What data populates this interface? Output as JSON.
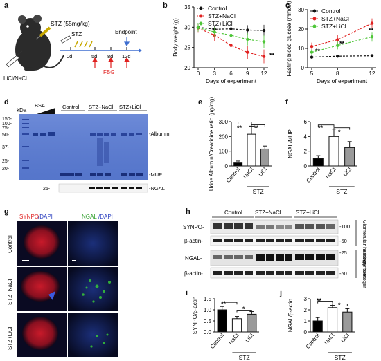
{
  "panels": {
    "a": {
      "letter": "a",
      "dose_label": "STZ (55mg/kg)",
      "injection_label": "LiCl/NaCl",
      "stz_label": "STZ",
      "endpoint_label": "Endpoint",
      "timeline_days": [
        "0d",
        "5d",
        "8d",
        "12d"
      ],
      "fbg_label": "FBG"
    },
    "b": {
      "letter": "b",
      "significance": "**"
    },
    "c": {
      "letter": "c",
      "significance": [
        "**",
        "**",
        "**"
      ]
    },
    "d": {
      "letter": "d",
      "kda_label": "kDa",
      "bsa_label": "BSA",
      "group_labels": [
        "Control",
        "STZ+NaCl",
        "STZ+LiCl"
      ],
      "mw_markers": [
        "150-",
        "100-",
        "75-",
        "50-",
        "37-",
        "25-",
        "20-"
      ],
      "band_labels": {
        "albumin": "-Albumin",
        "mup": "-MUP",
        "ngal": "-NGAL"
      },
      "ngal_marker": "25-"
    },
    "e": {
      "letter": "e",
      "significance": [
        "**",
        "**"
      ]
    },
    "f": {
      "letter": "f",
      "significance": [
        "**",
        "*"
      ]
    },
    "g": {
      "letter": "g",
      "col_labels": {
        "synpo": "SYNPO",
        "dapi1": "/DAPI",
        "ngal": "NGAL",
        "dapi2": "/DAPI"
      },
      "row_labels": [
        "Control",
        "STZ+NaCl",
        "STZ+LiCl"
      ]
    },
    "h": {
      "letter": "h",
      "group_labels": [
        "Control",
        "STZ+NaCl",
        "STZ+LiCl"
      ],
      "row_labels": [
        "SYNPO-",
        "β-actin-",
        "NGAL-",
        "β-actin-"
      ],
      "mw_markers": [
        "-100",
        "-50",
        "-25",
        "-50"
      ],
      "side_labels": [
        "Glomerular homogenates",
        "Kidney homogenates"
      ]
    },
    "i": {
      "letter": "i",
      "significance": [
        "**",
        "*"
      ]
    },
    "j": {
      "letter": "j",
      "significance": [
        "**",
        "*"
      ]
    }
  },
  "chart_data": [
    {
      "id": "b",
      "type": "line",
      "xlabel": "Days of experiment",
      "ylabel": "Body weight (g)",
      "x": [
        0,
        3,
        6,
        9,
        12
      ],
      "xticks": [
        "0",
        "3",
        "6",
        "9",
        "12"
      ],
      "yticks": [
        "20",
        "25",
        "30",
        "35"
      ],
      "ylim": [
        20,
        35
      ],
      "legend_position": "top-left",
      "series": [
        {
          "name": "Control",
          "color": "#111111",
          "values": [
            30.0,
            29.5,
            29.6,
            29.3,
            29.2
          ],
          "err": [
            1.0,
            1.0,
            1.2,
            1.2,
            1.4
          ]
        },
        {
          "name": "STZ+NaCl",
          "color": "#e0201f",
          "values": [
            29.8,
            28.0,
            25.5,
            23.8,
            22.8
          ],
          "err": [
            1.0,
            1.4,
            1.5,
            1.6,
            1.7
          ]
        },
        {
          "name": "STZ+LiCl",
          "color": "#4ec638",
          "values": [
            29.9,
            28.8,
            28.0,
            27.0,
            26.4
          ],
          "err": [
            1.0,
            1.2,
            1.3,
            1.5,
            1.6
          ]
        }
      ]
    },
    {
      "id": "c",
      "type": "line",
      "xlabel": "Days of experiment",
      "ylabel": "Fasting blood glucose (mmol/l)",
      "x": [
        5,
        8,
        12
      ],
      "xticks": [
        "5",
        "8",
        "12"
      ],
      "yticks": [
        "0",
        "10",
        "20",
        "30"
      ],
      "ylim": [
        0,
        30
      ],
      "legend_position": "top-left",
      "series": [
        {
          "name": "Control",
          "color": "#111111",
          "values": [
            5.5,
            6.0,
            6.2
          ],
          "err": [
            0.8,
            0.8,
            0.9
          ]
        },
        {
          "name": "STZ+NaCl",
          "color": "#e0201f",
          "values": [
            11.0,
            14.5,
            23.0
          ],
          "err": [
            2.0,
            2.5,
            2.5
          ]
        },
        {
          "name": "STZ+LiCl",
          "color": "#4ec638",
          "values": [
            8.0,
            11.5,
            16.0
          ],
          "err": [
            1.5,
            2.0,
            2.5
          ]
        }
      ]
    },
    {
      "id": "e",
      "type": "bar",
      "ylabel": "Urine Albumin/Creatinine ratio (μg/mg)",
      "categories": [
        "Control",
        "NaCl",
        "LiCl"
      ],
      "group_label": "STZ",
      "values": [
        25,
        215,
        115
      ],
      "err": [
        8,
        55,
        20
      ],
      "fills": [
        "#000000",
        "#ffffff",
        "#9a9a9a"
      ],
      "yticks": [
        "0",
        "100",
        "200",
        "300"
      ],
      "ylim": [
        0,
        300
      ]
    },
    {
      "id": "f",
      "type": "bar",
      "ylabel": "NGAL/MUP",
      "categories": [
        "Control",
        "NaCl",
        "LiCl"
      ],
      "group_label": "STZ",
      "values": [
        1.0,
        4.0,
        2.5
      ],
      "err": [
        0.4,
        1.0,
        0.8
      ],
      "fills": [
        "#000000",
        "#ffffff",
        "#9a9a9a"
      ],
      "yticks": [
        "0",
        "2",
        "4",
        "6"
      ],
      "ylim": [
        0,
        6
      ]
    },
    {
      "id": "i",
      "type": "bar",
      "ylabel": "SYNPO/β-actin",
      "categories": [
        "Control",
        "NaCl",
        "LiCl"
      ],
      "group_label": "STZ",
      "values": [
        1.0,
        0.6,
        0.8
      ],
      "err": [
        0.15,
        0.1,
        0.12
      ],
      "fills": [
        "#000000",
        "#ffffff",
        "#9a9a9a"
      ],
      "yticks": [
        "0.0",
        "0.5",
        "1.0",
        "1.5"
      ],
      "ylim": [
        0,
        1.5
      ]
    },
    {
      "id": "j",
      "type": "bar",
      "ylabel": "NGAL/β-actin",
      "categories": [
        "Control",
        "NaCl",
        "LiCl"
      ],
      "group_label": "STZ",
      "values": [
        1.0,
        2.2,
        1.8
      ],
      "err": [
        0.3,
        0.2,
        0.3
      ],
      "fills": [
        "#000000",
        "#ffffff",
        "#9a9a9a"
      ],
      "yticks": [
        "0",
        "1",
        "2",
        "3"
      ],
      "ylim": [
        0,
        3
      ]
    }
  ]
}
